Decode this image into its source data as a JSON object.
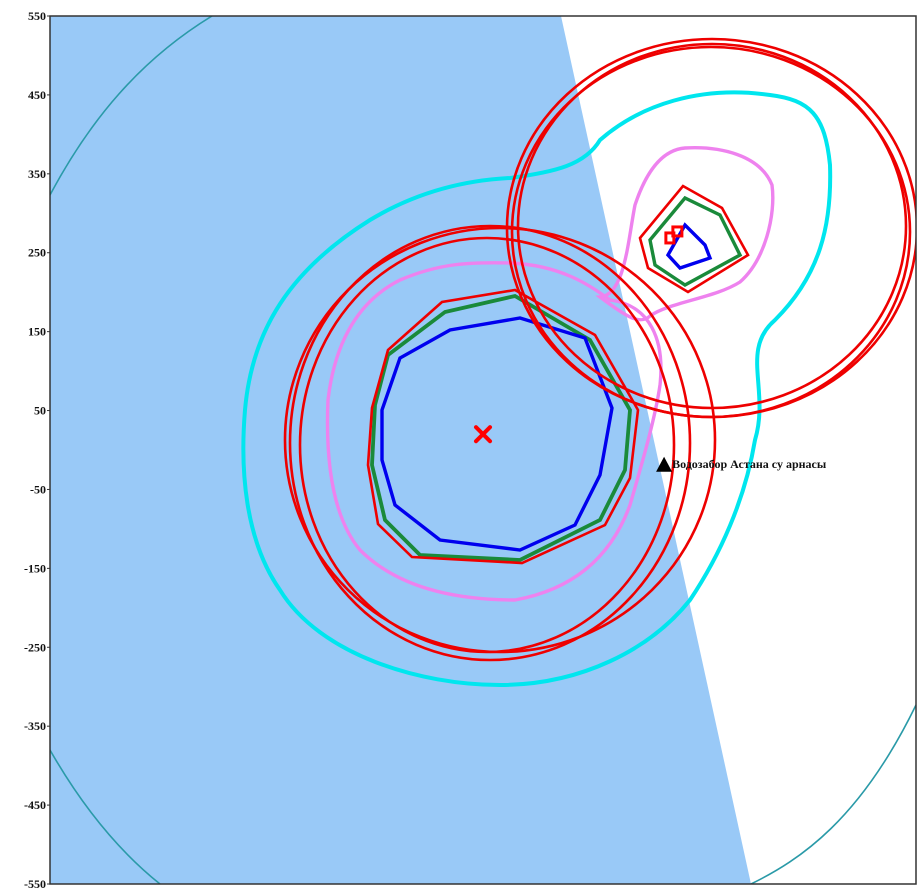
{
  "chart_data": {
    "type": "contour_map",
    "y_axis": {
      "range": [
        -550,
        550
      ],
      "ticks": [
        "550",
        "450",
        "350",
        "250",
        "150",
        "50",
        "-50",
        "-150",
        "-250",
        "-350",
        "-450",
        "-550"
      ]
    },
    "x_axis": {
      "range": [
        -550,
        550
      ]
    },
    "grid": false,
    "source_marker": {
      "symbol": "cross",
      "x": 0,
      "y": 20,
      "color": "#ff0000"
    },
    "secondary_source": {
      "x": 245,
      "y": 270,
      "color": "#ff0000"
    },
    "point_label": {
      "text": "Водозабор Астана су арнасы",
      "x": 230,
      "y": -20,
      "marker": "triangle"
    },
    "colors": {
      "shaded_zone": "#99c9f7",
      "isoline_outer": "#2a9aa8",
      "isoline_cyan": "#00e6ee",
      "isoline_violet": "#ee82ee",
      "isoline_green": "#1a8a3a",
      "isoline_blue": "#0000ee",
      "protection_zone_red": "#ee0000",
      "frame": "#333333"
    }
  }
}
